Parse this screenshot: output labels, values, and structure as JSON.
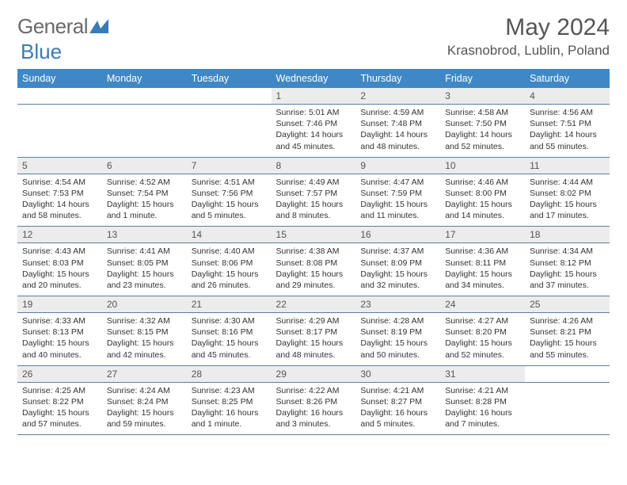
{
  "brand": {
    "part1": "General",
    "part2": "Blue"
  },
  "title": "May 2024",
  "location": "Krasnobrod, Lublin, Poland",
  "colors": {
    "header_bg": "#3f88c5",
    "header_text": "#ffffff",
    "daynum_bg": "#ececec",
    "row_border": "#5b7ea0",
    "title_color": "#555555",
    "text_color": "#333333",
    "brand_gray": "#6a6a6a",
    "brand_blue": "#3a7ab8",
    "page_bg": "#ffffff"
  },
  "typography": {
    "month_title_pt": 30,
    "location_pt": 17,
    "weekday_pt": 12.5,
    "daynum_pt": 12,
    "detail_pt": 10.5,
    "logo_pt": 26
  },
  "weekdays": [
    "Sunday",
    "Monday",
    "Tuesday",
    "Wednesday",
    "Thursday",
    "Friday",
    "Saturday"
  ],
  "weeks": [
    [
      null,
      null,
      null,
      {
        "n": "1",
        "sr": "Sunrise: 5:01 AM",
        "ss": "Sunset: 7:46 PM",
        "dl": "Daylight: 14 hours and 45 minutes."
      },
      {
        "n": "2",
        "sr": "Sunrise: 4:59 AM",
        "ss": "Sunset: 7:48 PM",
        "dl": "Daylight: 14 hours and 48 minutes."
      },
      {
        "n": "3",
        "sr": "Sunrise: 4:58 AM",
        "ss": "Sunset: 7:50 PM",
        "dl": "Daylight: 14 hours and 52 minutes."
      },
      {
        "n": "4",
        "sr": "Sunrise: 4:56 AM",
        "ss": "Sunset: 7:51 PM",
        "dl": "Daylight: 14 hours and 55 minutes."
      }
    ],
    [
      {
        "n": "5",
        "sr": "Sunrise: 4:54 AM",
        "ss": "Sunset: 7:53 PM",
        "dl": "Daylight: 14 hours and 58 minutes."
      },
      {
        "n": "6",
        "sr": "Sunrise: 4:52 AM",
        "ss": "Sunset: 7:54 PM",
        "dl": "Daylight: 15 hours and 1 minute."
      },
      {
        "n": "7",
        "sr": "Sunrise: 4:51 AM",
        "ss": "Sunset: 7:56 PM",
        "dl": "Daylight: 15 hours and 5 minutes."
      },
      {
        "n": "8",
        "sr": "Sunrise: 4:49 AM",
        "ss": "Sunset: 7:57 PM",
        "dl": "Daylight: 15 hours and 8 minutes."
      },
      {
        "n": "9",
        "sr": "Sunrise: 4:47 AM",
        "ss": "Sunset: 7:59 PM",
        "dl": "Daylight: 15 hours and 11 minutes."
      },
      {
        "n": "10",
        "sr": "Sunrise: 4:46 AM",
        "ss": "Sunset: 8:00 PM",
        "dl": "Daylight: 15 hours and 14 minutes."
      },
      {
        "n": "11",
        "sr": "Sunrise: 4:44 AM",
        "ss": "Sunset: 8:02 PM",
        "dl": "Daylight: 15 hours and 17 minutes."
      }
    ],
    [
      {
        "n": "12",
        "sr": "Sunrise: 4:43 AM",
        "ss": "Sunset: 8:03 PM",
        "dl": "Daylight: 15 hours and 20 minutes."
      },
      {
        "n": "13",
        "sr": "Sunrise: 4:41 AM",
        "ss": "Sunset: 8:05 PM",
        "dl": "Daylight: 15 hours and 23 minutes."
      },
      {
        "n": "14",
        "sr": "Sunrise: 4:40 AM",
        "ss": "Sunset: 8:06 PM",
        "dl": "Daylight: 15 hours and 26 minutes."
      },
      {
        "n": "15",
        "sr": "Sunrise: 4:38 AM",
        "ss": "Sunset: 8:08 PM",
        "dl": "Daylight: 15 hours and 29 minutes."
      },
      {
        "n": "16",
        "sr": "Sunrise: 4:37 AM",
        "ss": "Sunset: 8:09 PM",
        "dl": "Daylight: 15 hours and 32 minutes."
      },
      {
        "n": "17",
        "sr": "Sunrise: 4:36 AM",
        "ss": "Sunset: 8:11 PM",
        "dl": "Daylight: 15 hours and 34 minutes."
      },
      {
        "n": "18",
        "sr": "Sunrise: 4:34 AM",
        "ss": "Sunset: 8:12 PM",
        "dl": "Daylight: 15 hours and 37 minutes."
      }
    ],
    [
      {
        "n": "19",
        "sr": "Sunrise: 4:33 AM",
        "ss": "Sunset: 8:13 PM",
        "dl": "Daylight: 15 hours and 40 minutes."
      },
      {
        "n": "20",
        "sr": "Sunrise: 4:32 AM",
        "ss": "Sunset: 8:15 PM",
        "dl": "Daylight: 15 hours and 42 minutes."
      },
      {
        "n": "21",
        "sr": "Sunrise: 4:30 AM",
        "ss": "Sunset: 8:16 PM",
        "dl": "Daylight: 15 hours and 45 minutes."
      },
      {
        "n": "22",
        "sr": "Sunrise: 4:29 AM",
        "ss": "Sunset: 8:17 PM",
        "dl": "Daylight: 15 hours and 48 minutes."
      },
      {
        "n": "23",
        "sr": "Sunrise: 4:28 AM",
        "ss": "Sunset: 8:19 PM",
        "dl": "Daylight: 15 hours and 50 minutes."
      },
      {
        "n": "24",
        "sr": "Sunrise: 4:27 AM",
        "ss": "Sunset: 8:20 PM",
        "dl": "Daylight: 15 hours and 52 minutes."
      },
      {
        "n": "25",
        "sr": "Sunrise: 4:26 AM",
        "ss": "Sunset: 8:21 PM",
        "dl": "Daylight: 15 hours and 55 minutes."
      }
    ],
    [
      {
        "n": "26",
        "sr": "Sunrise: 4:25 AM",
        "ss": "Sunset: 8:22 PM",
        "dl": "Daylight: 15 hours and 57 minutes."
      },
      {
        "n": "27",
        "sr": "Sunrise: 4:24 AM",
        "ss": "Sunset: 8:24 PM",
        "dl": "Daylight: 15 hours and 59 minutes."
      },
      {
        "n": "28",
        "sr": "Sunrise: 4:23 AM",
        "ss": "Sunset: 8:25 PM",
        "dl": "Daylight: 16 hours and 1 minute."
      },
      {
        "n": "29",
        "sr": "Sunrise: 4:22 AM",
        "ss": "Sunset: 8:26 PM",
        "dl": "Daylight: 16 hours and 3 minutes."
      },
      {
        "n": "30",
        "sr": "Sunrise: 4:21 AM",
        "ss": "Sunset: 8:27 PM",
        "dl": "Daylight: 16 hours and 5 minutes."
      },
      {
        "n": "31",
        "sr": "Sunrise: 4:21 AM",
        "ss": "Sunset: 8:28 PM",
        "dl": "Daylight: 16 hours and 7 minutes."
      },
      null
    ]
  ]
}
